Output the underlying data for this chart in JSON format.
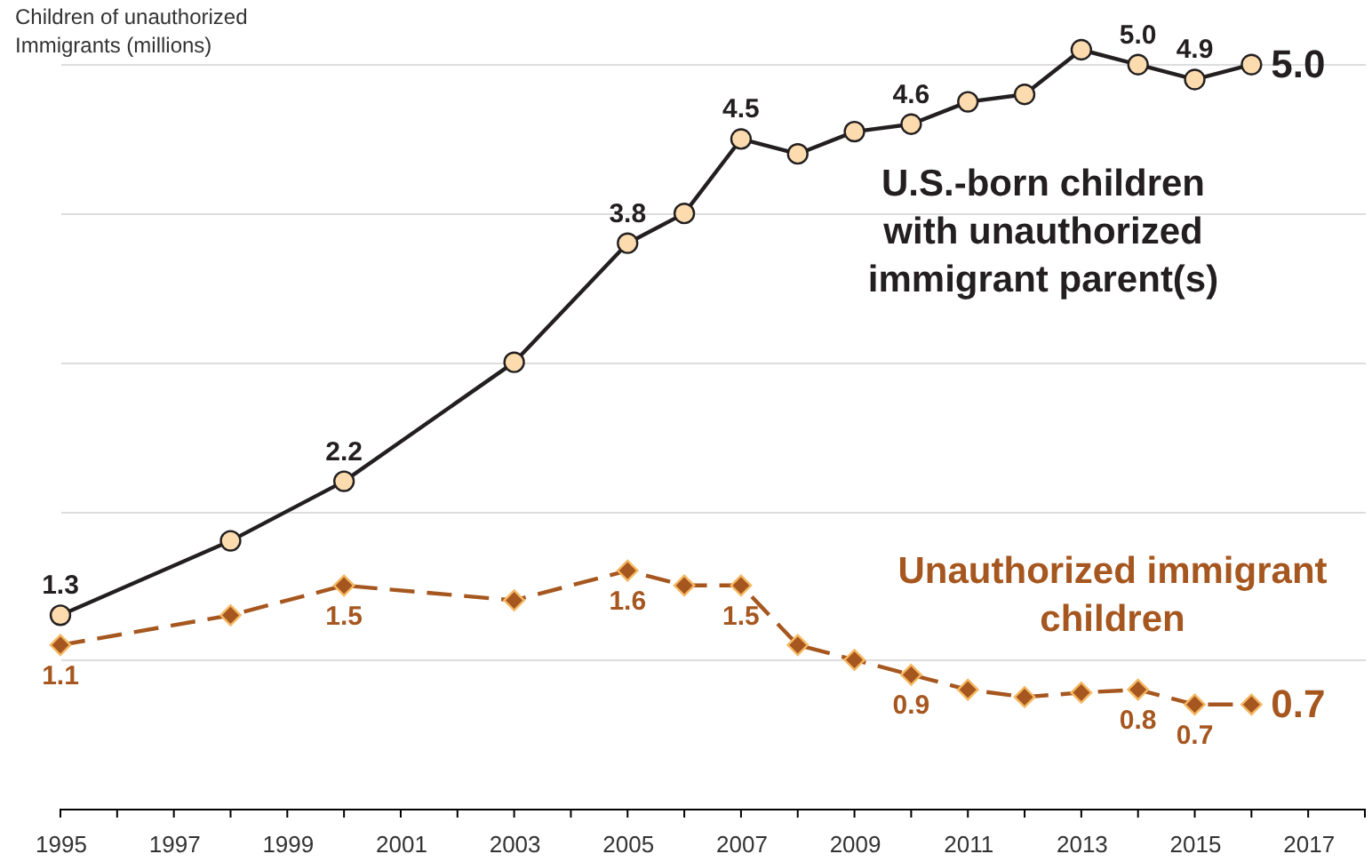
{
  "chart_data": {
    "type": "line",
    "ylabel": "Children of unauthorized Immigrants (millions)",
    "x": [
      1995,
      1998,
      2000,
      2003,
      2005,
      2006,
      2007,
      2008,
      2009,
      2010,
      2011,
      2012,
      2013,
      2014,
      2015,
      2016
    ],
    "xlim": [
      1995,
      2018
    ],
    "xticks": [
      1995,
      {
        "value": 1996,
        "label": null
      },
      1997,
      {
        "value": 1998,
        "label": null
      },
      1999,
      {
        "value": 2000,
        "label": null
      },
      2001,
      {
        "value": 2002,
        "label": null
      },
      2003,
      {
        "value": 2004,
        "label": null
      },
      2005,
      {
        "value": 2006,
        "label": null
      },
      2007,
      {
        "value": 2008,
        "label": null
      },
      2009,
      {
        "value": 2010,
        "label": null
      },
      2011,
      {
        "value": 2012,
        "label": null
      },
      2013,
      {
        "value": 2014,
        "label": null
      },
      2015,
      {
        "value": 2016,
        "label": null
      },
      2017,
      {
        "value": 2018,
        "label": null
      }
    ],
    "yticks": [
      {
        "value": 1,
        "label": null
      },
      {
        "value": 2,
        "label": null
      },
      {
        "value": 3,
        "label": null
      },
      {
        "value": 4,
        "label": null
      },
      {
        "value": 5,
        "label": null
      }
    ],
    "tick_labels": "x",
    "grid": "y",
    "series": [
      {
        "name": "U.S.-born children with unauthorized immigrant parent(s)",
        "color": "#231f20",
        "marker": "circle",
        "line_style": "solid",
        "values": [
          1.3,
          1.8,
          2.2,
          3.0,
          3.8,
          4.0,
          4.5,
          4.4,
          4.55,
          4.6,
          4.75,
          4.8,
          5.1,
          5.0,
          4.9,
          5.0
        ],
        "value_labels": [
          "1.3",
          null,
          "2.2",
          null,
          "3.8",
          null,
          "4.5",
          null,
          null,
          "4.6",
          null,
          null,
          null,
          "5.0",
          "4.9",
          "5.0"
        ]
      },
      {
        "name": "Unauthorized immigrant children",
        "color": "#a6571f",
        "marker": "diamond",
        "line_style": "dashed",
        "values": [
          1.1,
          1.3,
          1.5,
          1.4,
          1.6,
          1.5,
          1.5,
          1.1,
          1.0,
          0.9,
          0.8,
          0.75,
          0.78,
          0.8,
          0.7,
          0.7
        ],
        "value_labels": [
          "1.1",
          null,
          "1.5",
          null,
          "1.6",
          null,
          "1.5",
          null,
          null,
          "0.9",
          null,
          null,
          null,
          "0.8",
          "0.7",
          "0.7"
        ]
      }
    ]
  }
}
